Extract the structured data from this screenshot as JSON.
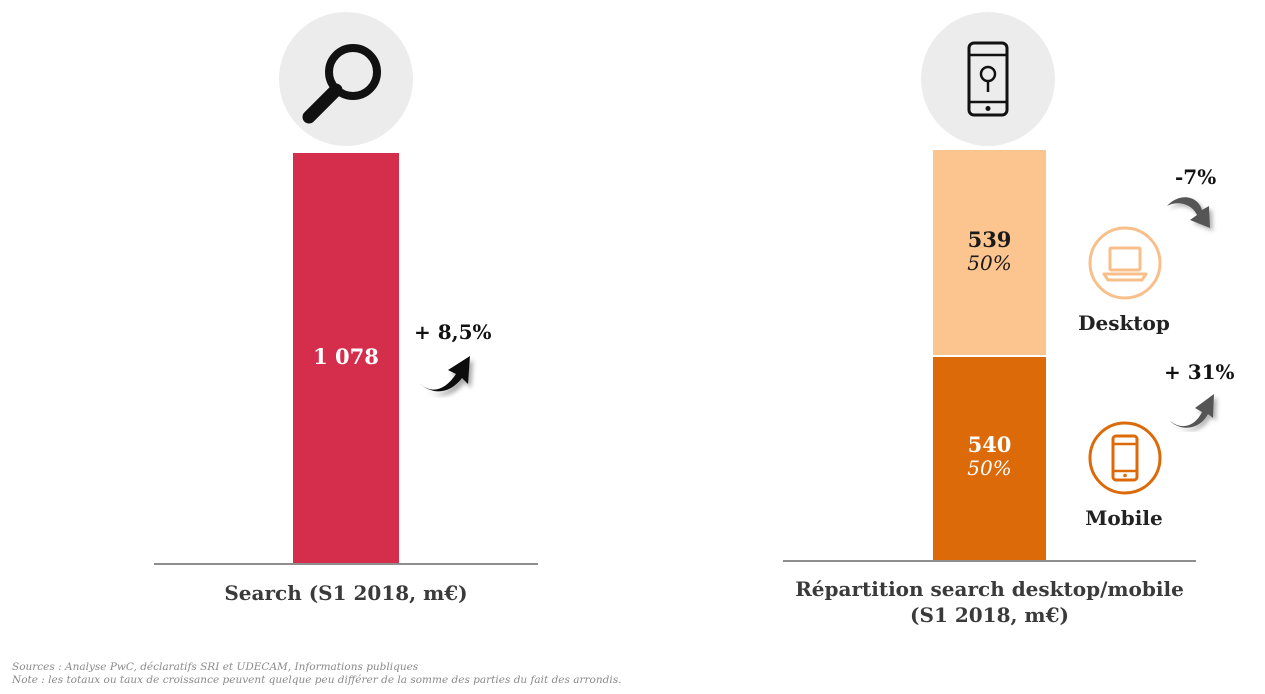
{
  "chart_data": [
    {
      "type": "bar",
      "title": "",
      "caption": "Search (S1 2018, m€)",
      "categories": [
        "Search"
      ],
      "values": [
        1078
      ],
      "value_label": "1 078",
      "growth_label": "+ 8,5%",
      "growth_direction": "up",
      "colors": {
        "bar": "#d42e4c"
      },
      "icon": "magnifier-icon"
    },
    {
      "type": "bar",
      "stacked": true,
      "title": "",
      "caption_line1": "Répartition search desktop/mobile",
      "caption_line2": "(S1 2018, m€)",
      "categories": [
        "Répartition"
      ],
      "series": [
        {
          "name": "Mobile",
          "values": [
            540
          ],
          "value_label": "540",
          "share_label": "50%",
          "growth_label": "+ 31%",
          "growth_direction": "up",
          "color": "#dc6a08",
          "icon": "smartphone-icon"
        },
        {
          "name": "Desktop",
          "values": [
            539
          ],
          "value_label": "539",
          "share_label": "50%",
          "growth_label": "-7%",
          "growth_direction": "down",
          "color": "#fcc48e",
          "icon": "laptop-icon"
        }
      ],
      "icon": "mobile-location-icon"
    }
  ],
  "footnotes": {
    "sources": "Sources : Analyse PwC, déclaratifs SRI et UDECAM, Informations publiques",
    "note": "Note : les totaux ou taux de croissance peuvent quelque peu différer de la somme des parties du fait des arrondis."
  }
}
